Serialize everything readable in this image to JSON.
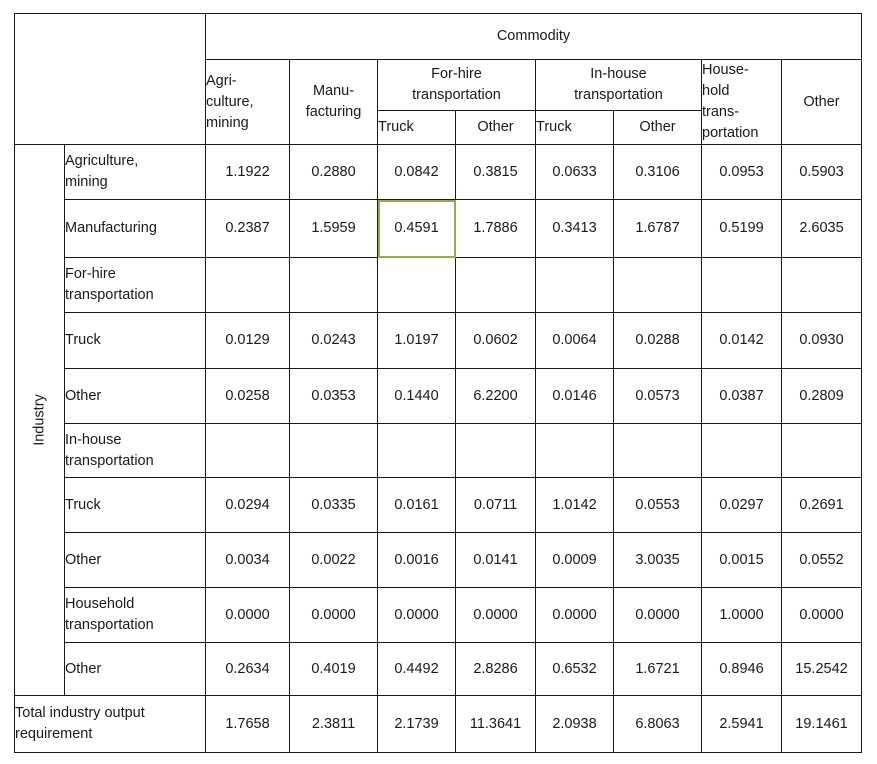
{
  "header": {
    "commodity": "Commodity",
    "industry": "Industry",
    "cols": {
      "agri": "Agri-\nculture,\nmining",
      "manu": "Manu-\nfacturing",
      "forhire": "For-hire\ntransportation",
      "inhouse": "In-house\ntransportation",
      "household": "House-\nhold\ntrans-\nportation",
      "other": "Other"
    },
    "sub": {
      "truck": "Truck",
      "other": "Other"
    }
  },
  "rows": {
    "agri": {
      "label": "Agriculture,\nmining",
      "values": [
        "1.1922",
        "0.2880",
        "0.0842",
        "0.3815",
        "0.0633",
        "0.3106",
        "0.0953",
        "0.5903"
      ]
    },
    "manu": {
      "label": "Manufacturing",
      "values": [
        "0.2387",
        "1.5959",
        "0.4591",
        "1.7886",
        "0.3413",
        "1.6787",
        "0.5199",
        "2.6035"
      ]
    },
    "forhire_group": {
      "label": "For-hire\ntransportation"
    },
    "forhire_truck": {
      "label": "Truck",
      "values": [
        "0.0129",
        "0.0243",
        "1.0197",
        "0.0602",
        "0.0064",
        "0.0288",
        "0.0142",
        "0.0930"
      ]
    },
    "forhire_other": {
      "label": "Other",
      "values": [
        "0.0258",
        "0.0353",
        "0.1440",
        "6.2200",
        "0.0146",
        "0.0573",
        "0.0387",
        "0.2809"
      ]
    },
    "inhouse_group": {
      "label": "In-house\ntransportation"
    },
    "inhouse_truck": {
      "label": "Truck",
      "values": [
        "0.0294",
        "0.0335",
        "0.0161",
        "0.0711",
        "1.0142",
        "0.0553",
        "0.0297",
        "0.2691"
      ]
    },
    "inhouse_other": {
      "label": "Other",
      "values": [
        "0.0034",
        "0.0022",
        "0.0016",
        "0.0141",
        "0.0009",
        "3.0035",
        "0.0015",
        "0.0552"
      ]
    },
    "household": {
      "label": "Household\ntransportation",
      "values": [
        "0.0000",
        "0.0000",
        "0.0000",
        "0.0000",
        "0.0000",
        "0.0000",
        "1.0000",
        "0.0000"
      ]
    },
    "other": {
      "label": "Other",
      "values": [
        "0.2634",
        "0.4019",
        "0.4492",
        "2.8286",
        "0.6532",
        "1.6721",
        "0.8946",
        "15.2542"
      ]
    },
    "total": {
      "label": "Total  industry output\nrequirement",
      "values": [
        "1.7658",
        "2.3811",
        "2.1739",
        "11.3641",
        "2.0938",
        "6.8063",
        "2.5941",
        "19.1461"
      ]
    }
  },
  "highlight_color": "#8db04b"
}
